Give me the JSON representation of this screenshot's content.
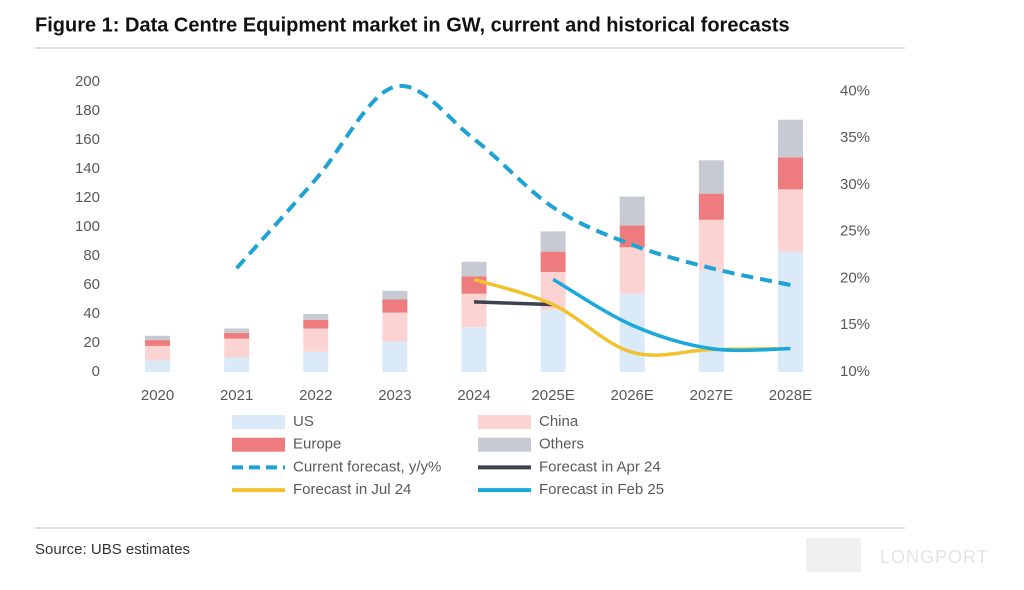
{
  "chart_data": {
    "type": "bar",
    "title": "Figure 1: Data Centre Equipment market in GW, current and historical forecasts",
    "categories": [
      "2020",
      "2021",
      "2022",
      "2023",
      "2024",
      "2025E",
      "2026E",
      "2027E",
      "2028E"
    ],
    "ylim": [
      0,
      200
    ],
    "yticks": [
      0,
      20,
      40,
      60,
      80,
      100,
      120,
      140,
      160,
      180,
      200
    ],
    "y2lim": [
      10,
      41
    ],
    "y2ticks": [
      {
        "value": 10,
        "label": "10%"
      },
      {
        "value": 15,
        "label": "15%"
      },
      {
        "value": 20,
        "label": "20%"
      },
      {
        "value": 25,
        "label": "25%"
      },
      {
        "value": 30,
        "label": "30%"
      },
      {
        "value": 35,
        "label": "35%"
      },
      {
        "value": 40,
        "label": "40%"
      }
    ],
    "series": [
      {
        "name": "US",
        "type": "bar",
        "color": "#dbeaf8",
        "values": [
          8,
          10,
          14,
          21,
          31,
          43,
          54,
          70,
          83
        ]
      },
      {
        "name": "China",
        "type": "bar",
        "color": "#fbd3d3",
        "values": [
          10,
          13,
          16,
          20,
          23,
          26,
          32,
          35,
          43
        ]
      },
      {
        "name": "Europe",
        "type": "bar",
        "color": "#ee7b7d",
        "values": [
          4,
          4,
          6,
          9,
          12,
          14,
          15,
          18,
          22
        ]
      },
      {
        "name": "Others",
        "type": "bar",
        "color": "#c5cad3",
        "values": [
          3,
          3,
          4,
          6,
          10,
          14,
          20,
          23,
          26
        ]
      },
      {
        "name": "Current forecast, y/y%",
        "type": "line",
        "axis": "y2",
        "dashed": true,
        "color": "#1fa3d6",
        "values": [
          null,
          21.1,
          30.6,
          40.5,
          34.9,
          27.6,
          23.6,
          21.1,
          19.3
        ]
      },
      {
        "name": "Forecast in Apr 24",
        "type": "line",
        "axis": "y2",
        "color": "#3c4150",
        "values": [
          null,
          null,
          null,
          null,
          17.5,
          17.2,
          null,
          null,
          null
        ]
      },
      {
        "name": "Forecast in Jul 24",
        "type": "line",
        "axis": "y2",
        "color": "#f2c12e",
        "values": [
          null,
          null,
          null,
          null,
          19.9,
          17.2,
          12.1,
          12.4,
          12.5
        ]
      },
      {
        "name": "Forecast in Feb 25",
        "type": "line",
        "axis": "y2",
        "color": "#1ba8dc",
        "values": [
          null,
          null,
          null,
          null,
          null,
          19.9,
          15.0,
          12.5,
          12.5
        ]
      }
    ],
    "source": "Source: UBS estimates",
    "watermark": "LONGPORT"
  }
}
